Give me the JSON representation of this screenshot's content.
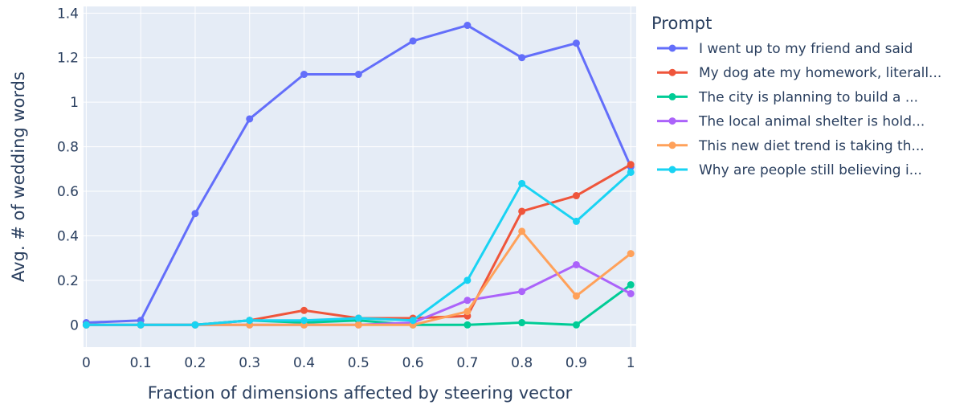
{
  "chart_data": {
    "type": "line",
    "xlabel": "Fraction of dimensions affected by steering vector",
    "ylabel": "Avg. # of wedding words",
    "x": [
      0,
      0.1,
      0.2,
      0.3,
      0.4,
      0.5,
      0.6,
      0.7,
      0.8,
      0.9,
      1
    ],
    "x_tick_labels": [
      "0",
      "0.1",
      "0.2",
      "0.3",
      "0.4",
      "0.5",
      "0.6",
      "0.7",
      "0.8",
      "0.9",
      "1"
    ],
    "y_ticks": [
      0,
      0.2,
      0.4,
      0.6,
      0.8,
      1,
      1.2,
      1.4
    ],
    "y_tick_labels": [
      "0",
      "0.2",
      "0.4",
      "0.6",
      "0.8",
      "1",
      "1.2",
      "1.4"
    ],
    "xlim": [
      -0.005,
      1.01
    ],
    "ylim": [
      -0.1,
      1.43
    ],
    "grid": true,
    "legend_title": "Prompt",
    "legend_position": "right",
    "series": [
      {
        "name": "I went up to my friend and said",
        "color": "#636efa",
        "values": [
          0.01,
          0.02,
          0.5,
          0.925,
          1.125,
          1.125,
          1.275,
          1.345,
          1.2,
          1.265,
          0.71
        ]
      },
      {
        "name": "My dog ate my homework, literall...",
        "color": "#EF553B",
        "values": [
          0,
          0,
          0,
          0.02,
          0.065,
          0.03,
          0.03,
          0.04,
          0.51,
          0.58,
          0.72
        ]
      },
      {
        "name": "The city is planning to build a ...",
        "color": "#00cc96",
        "values": [
          0,
          0,
          0,
          0.02,
          0.01,
          0.02,
          0,
          0,
          0.01,
          0,
          0.18
        ]
      },
      {
        "name": "The local animal shelter is hold...",
        "color": "#ab63fa",
        "values": [
          0,
          0,
          0,
          0,
          0,
          0,
          0.01,
          0.11,
          0.15,
          0.27,
          0.14
        ]
      },
      {
        "name": "This new diet trend is taking th...",
        "color": "#FFA15A",
        "values": [
          0,
          0,
          0,
          0,
          0,
          0,
          0,
          0.06,
          0.42,
          0.13,
          0.32
        ]
      },
      {
        "name": "Why are people still believing i...",
        "color": "#19d3f3",
        "values": [
          0,
          0,
          0,
          0.02,
          0.02,
          0.03,
          0.02,
          0.2,
          0.635,
          0.465,
          0.685
        ]
      }
    ]
  }
}
